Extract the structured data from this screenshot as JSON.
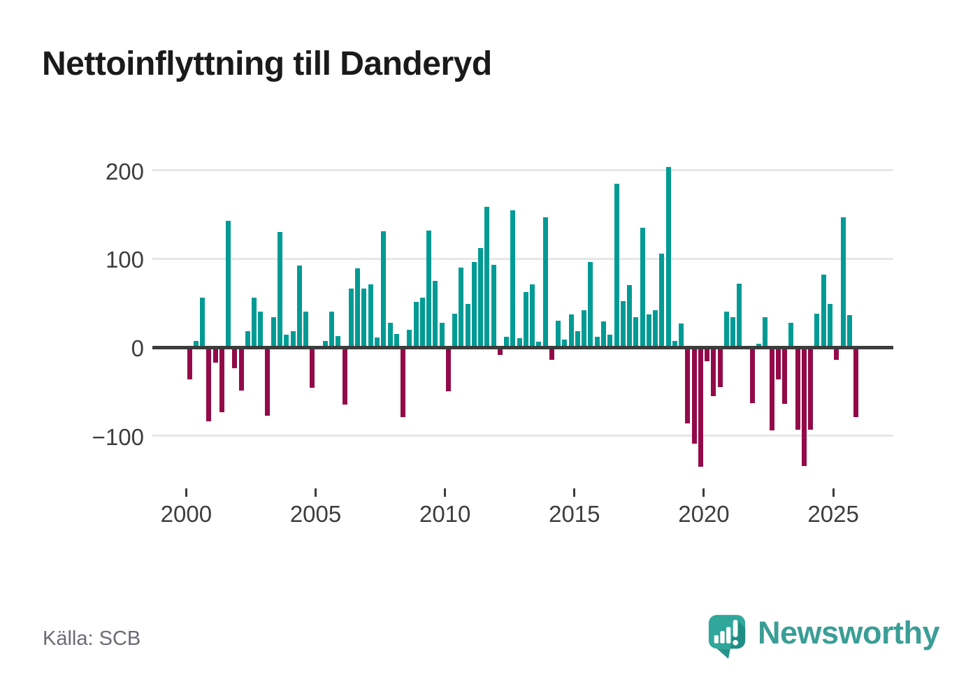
{
  "title": "Nettoinflyttning till Danderyd",
  "source": "Källa: SCB",
  "brand": {
    "name": "Newsworthy",
    "icon": "speech-bubble-bar-chart-icon"
  },
  "colors": {
    "positive": "#009b94",
    "negative": "#930a49",
    "axis": "#3c3c3c",
    "grid": "#e7e7e7",
    "tick_label": "#3d3d3d",
    "source_text": "#6b6b74",
    "brand_teal": "#3a9e96"
  },
  "chart_data": {
    "type": "bar",
    "title": "Nettoinflyttning till Danderyd",
    "x_unit": "quarter",
    "x_start": "2000 Q1",
    "x_end": "2025 Q4",
    "x_tick_labels": [
      "2000",
      "2005",
      "2010",
      "2015",
      "2020",
      "2025"
    ],
    "y_ticks": [
      200,
      100,
      0,
      -100
    ],
    "y_tick_labels": [
      "200",
      "100",
      "0",
      "−100"
    ],
    "ylim": [
      -150,
      215
    ],
    "grid": true,
    "legend": "none",
    "series": [
      {
        "name": "Nettoinflyttning",
        "values": [
          -36,
          7,
          56,
          -84,
          -17,
          -73,
          143,
          -24,
          -49,
          18,
          56,
          40,
          -77,
          34,
          130,
          14,
          18,
          92,
          40,
          -46,
          0,
          7,
          40,
          13,
          -65,
          66,
          89,
          66,
          71,
          11,
          131,
          28,
          15,
          -79,
          20,
          51,
          56,
          132,
          75,
          28,
          -50,
          38,
          90,
          49,
          96,
          112,
          159,
          93,
          -9,
          12,
          155,
          10,
          62,
          71,
          6,
          147,
          -14,
          30,
          9,
          37,
          18,
          42,
          96,
          12,
          29,
          14,
          185,
          52,
          70,
          34,
          135,
          37,
          42,
          106,
          204,
          7,
          27,
          -86,
          -109,
          -135,
          -16,
          -55,
          -45,
          40,
          34,
          72,
          0,
          -63,
          4,
          34,
          -94,
          -36,
          -64,
          28,
          -93,
          -134,
          -93,
          38,
          82,
          49,
          -14,
          147,
          36,
          -79
        ]
      }
    ]
  }
}
